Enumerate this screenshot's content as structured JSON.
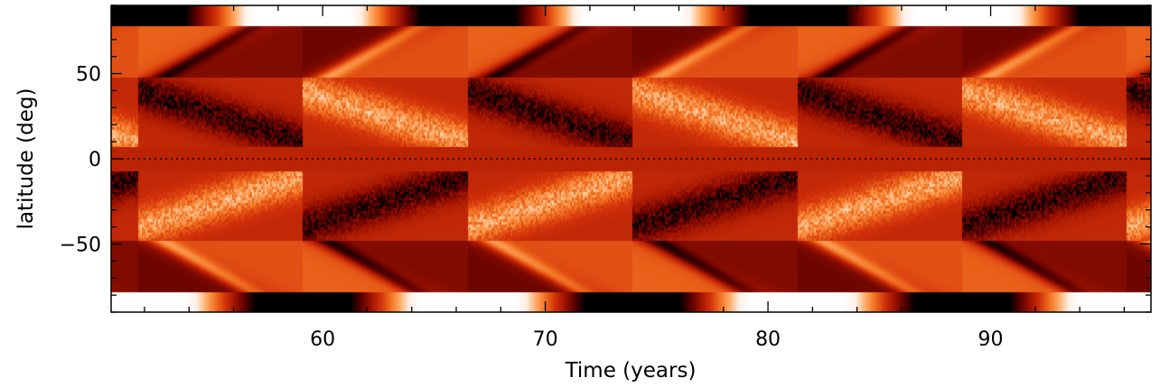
{
  "chart_data": {
    "type": "heatmap",
    "title": "",
    "xlabel": "Time (years)",
    "ylabel": "latitude (deg)",
    "xlim": [
      50.5,
      97.2
    ],
    "ylim": [
      -90,
      90
    ],
    "x_ticks": [
      60,
      70,
      80,
      90
    ],
    "x_tick_labels": [
      "60",
      "70",
      "80",
      "90"
    ],
    "y_ticks": [
      50,
      0,
      -50
    ],
    "y_tick_labels": [
      "50",
      "0",
      "−50"
    ],
    "x_minor_step": 2,
    "y_minor_step": 10,
    "cycle_period_years": 7.4,
    "cycle_start_years": [
      51.7,
      59.1,
      66.5,
      73.9,
      81.3,
      88.7,
      96.1
    ],
    "equator_line": {
      "y": 0,
      "style": "dotted"
    },
    "colormap": [
      "#000000",
      "#5a0000",
      "#a01400",
      "#d2320a",
      "#f06e1e",
      "#ffaa64",
      "#fff0e6",
      "#ffffff"
    ],
    "grid": false,
    "legend": "none"
  }
}
